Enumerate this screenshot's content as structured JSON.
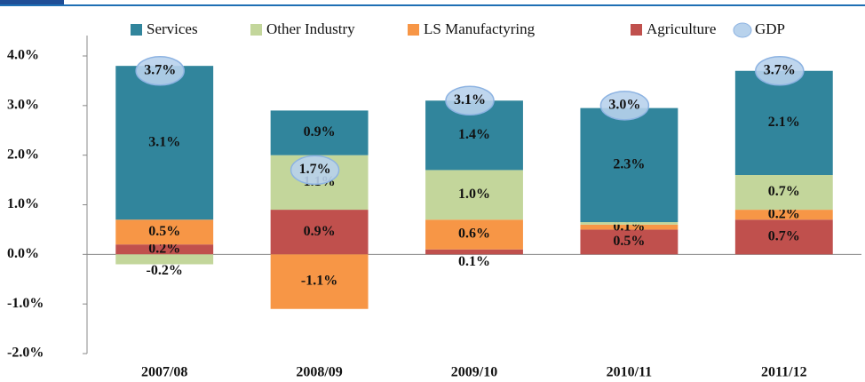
{
  "chart_data": {
    "type": "stacked_bar",
    "categories": [
      "2007/08",
      "2008/09",
      "2009/10",
      "2010/11",
      "2011/12"
    ],
    "series": [
      {
        "name": "Services",
        "color": "#31859c",
        "values": [
          3.1,
          0.9,
          1.4,
          2.3,
          2.1
        ],
        "value_labels": [
          "3.1%",
          "0.9%",
          "1.4%",
          "2.3%",
          "2.1%"
        ]
      },
      {
        "name": "Other Industry",
        "color": "#c3d69b",
        "values": [
          -0.2,
          1.1,
          1.0,
          0.05,
          0.7
        ],
        "value_labels": [
          "-0.2%",
          "1.1%",
          "1.0%",
          null,
          "0.7%"
        ]
      },
      {
        "name": "LS Manufactyring",
        "color": "#f79646",
        "values": [
          0.5,
          -1.1,
          0.6,
          0.1,
          0.2
        ],
        "value_labels": [
          "0.5%",
          "-1.1%",
          "0.6%",
          "0.1%",
          "0.2%"
        ]
      },
      {
        "name": "Agriculture",
        "color": "#c0504d",
        "values": [
          0.2,
          0.9,
          0.1,
          0.5,
          0.7
        ],
        "value_labels": [
          "0.2%",
          "0.9%",
          "0.1%",
          "0.5%",
          "0.7%"
        ]
      }
    ],
    "gdp": {
      "name": "GDP",
      "color": "#b8d2ec",
      "values": [
        3.7,
        1.7,
        3.1,
        3.0,
        3.7
      ],
      "value_labels": [
        "3.7%",
        "1.7%",
        "3.1%",
        "3.0%",
        "3.7%"
      ]
    },
    "ylim": [
      -2,
      4
    ],
    "yticks": [
      {
        "value": -2,
        "label": "-2.0%"
      },
      {
        "value": -1,
        "label": "-1.0%"
      },
      {
        "value": 0,
        "label": "0.0%"
      },
      {
        "value": 1,
        "label": "1.0%"
      },
      {
        "value": 2,
        "label": "2.0%"
      },
      {
        "value": 3,
        "label": "3.0%"
      },
      {
        "value": 4,
        "label": "4.0%"
      }
    ]
  }
}
